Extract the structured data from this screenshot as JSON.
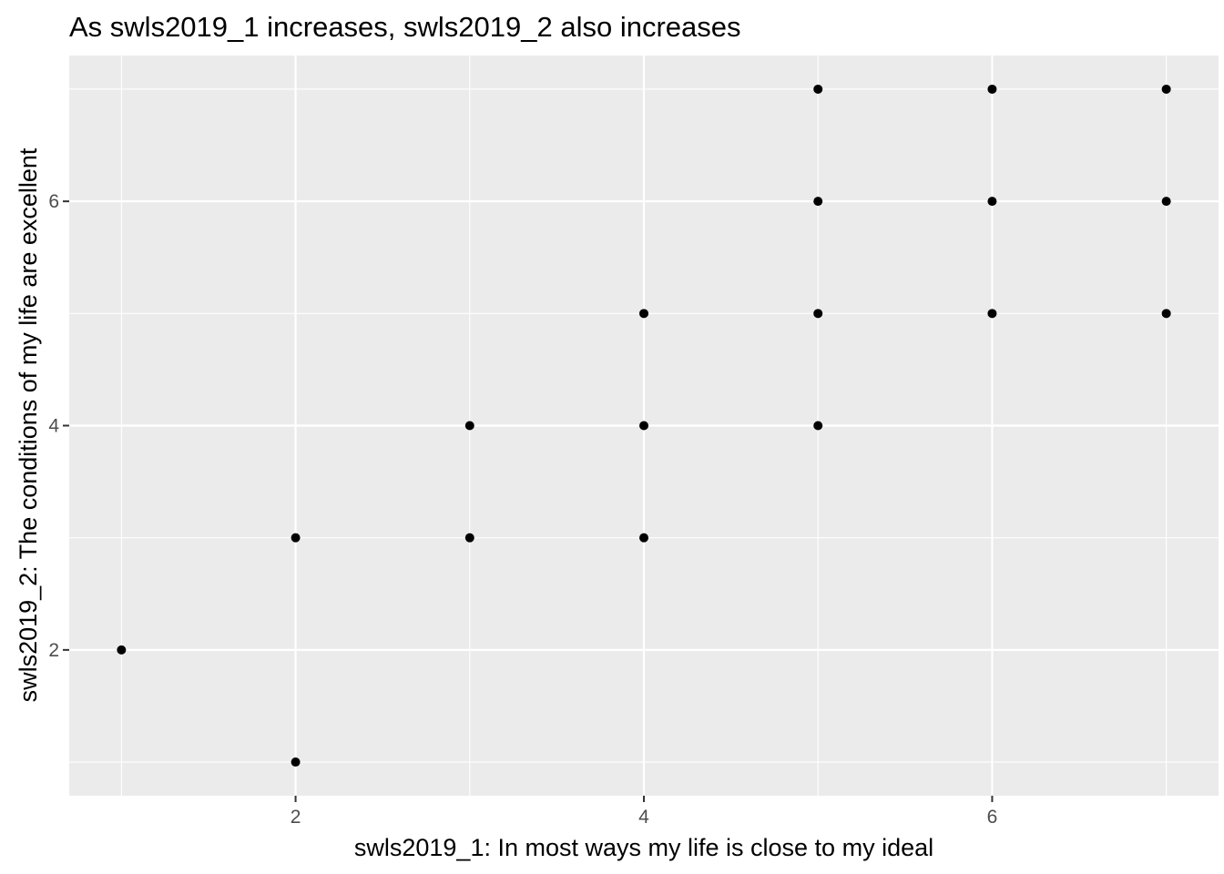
{
  "chart_data": {
    "type": "scatter",
    "title": "As swls2019_1 increases, swls2019_2 also increases",
    "xlabel": "swls2019_1: In most ways my life is close to my ideal",
    "ylabel": "swls2019_2: The conditions of my life are excellent",
    "xlim": [
      0.7,
      7.3
    ],
    "ylim": [
      0.7,
      7.3
    ],
    "x_ticks": [
      2,
      4,
      6
    ],
    "y_ticks": [
      2,
      4,
      6
    ],
    "grid": true,
    "colors": {
      "panel": "#ebebeb",
      "grid": "#ffffff",
      "point": "#000000"
    },
    "points": [
      {
        "x": 1,
        "y": 2
      },
      {
        "x": 2,
        "y": 1
      },
      {
        "x": 2,
        "y": 3
      },
      {
        "x": 3,
        "y": 3
      },
      {
        "x": 3,
        "y": 4
      },
      {
        "x": 4,
        "y": 3
      },
      {
        "x": 4,
        "y": 4
      },
      {
        "x": 4,
        "y": 5
      },
      {
        "x": 5,
        "y": 4
      },
      {
        "x": 5,
        "y": 5
      },
      {
        "x": 5,
        "y": 6
      },
      {
        "x": 5,
        "y": 7
      },
      {
        "x": 6,
        "y": 5
      },
      {
        "x": 6,
        "y": 6
      },
      {
        "x": 6,
        "y": 7
      },
      {
        "x": 7,
        "y": 5
      },
      {
        "x": 7,
        "y": 6
      },
      {
        "x": 7,
        "y": 7
      }
    ]
  }
}
